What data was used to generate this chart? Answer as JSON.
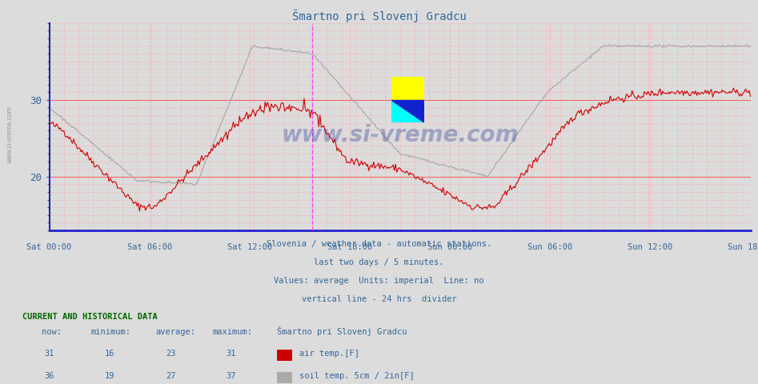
{
  "title": "Šmartno pri Slovenj Gradcu",
  "background_color": "#dcdcdc",
  "plot_bg_color": "#dcdcdc",
  "x_labels": [
    "Sat 00:00",
    "Sat 06:00",
    "Sat 12:00",
    "Sat 18:00",
    "Sun 00:00",
    "Sun 06:00",
    "Sun 12:00",
    "Sun 18:00"
  ],
  "y_ticks": [
    20,
    30
  ],
  "ylim_min": 13,
  "ylim_max": 40,
  "air_color": "#cc0000",
  "soil_color": "#aaaaaa",
  "vline_color": "#ff44ff",
  "axis_color": "#2222cc",
  "text_color": "#336699",
  "footer_line1": "Slovenia / weather data - automatic stations.",
  "footer_line2": "last two days / 5 minutes.",
  "footer_line3": "Values: average  Units: imperial  Line: no",
  "footer_line4": "vertical line - 24 hrs  divider",
  "watermark": "www.si-vreme.com",
  "legend_title": "Šmartno pri Slovenj Gradcu",
  "stats_air": {
    "now": 31,
    "min": 16,
    "avg": 23,
    "max": 31
  },
  "stats_soil": {
    "now": 36,
    "min": 19,
    "avg": 27,
    "max": 37
  },
  "air_keypoints_x": [
    0,
    0.04,
    0.08,
    0.25,
    0.3,
    0.55,
    0.62,
    0.7,
    0.75,
    0.85,
    1.0,
    1.21,
    1.27,
    1.5,
    1.6,
    1.75,
    2.0
  ],
  "air_keypoints_y": [
    27,
    26,
    24,
    16.2,
    16,
    27.5,
    29,
    29,
    28.5,
    22,
    21,
    16,
    16,
    28,
    30,
    31,
    31
  ],
  "soil_keypoints_x": [
    0,
    0.25,
    0.42,
    0.58,
    0.75,
    1.0,
    1.25,
    1.42,
    1.58,
    1.75,
    2.0
  ],
  "soil_keypoints_y": [
    29,
    19.5,
    19.0,
    37,
    36,
    23,
    20,
    31,
    37,
    37,
    37
  ]
}
